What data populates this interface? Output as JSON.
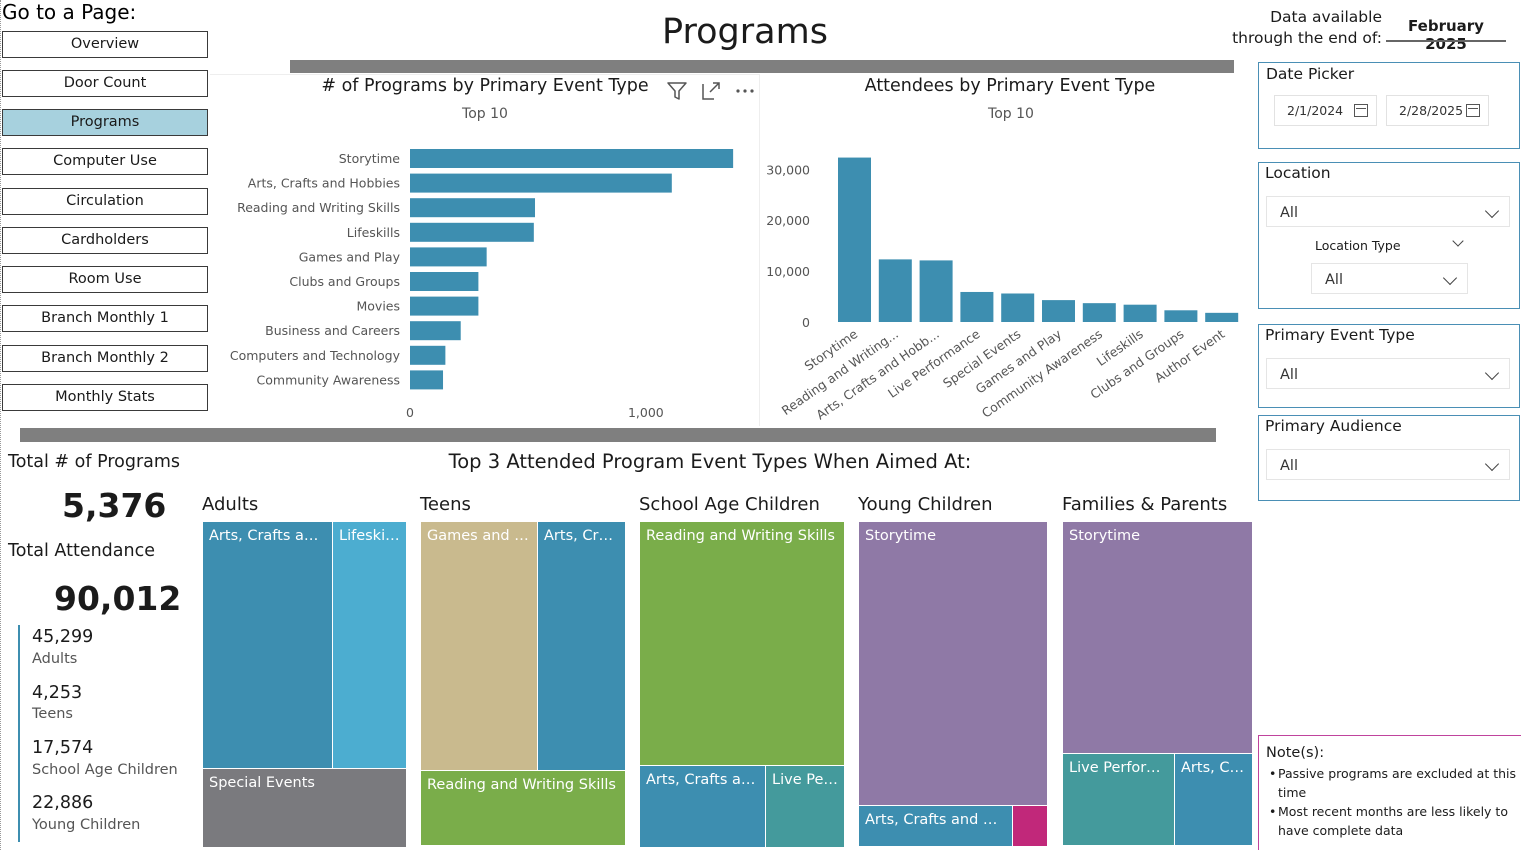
{
  "nav": {
    "title": "Go to a Page:",
    "items": [
      {
        "label": "Overview",
        "active": false
      },
      {
        "label": "Door Count",
        "active": false
      },
      {
        "label": "Programs",
        "active": true
      },
      {
        "label": "Computer Use",
        "active": false
      },
      {
        "label": "Circulation",
        "active": false
      },
      {
        "label": "Cardholders",
        "active": false
      },
      {
        "label": "Room Use",
        "active": false
      },
      {
        "label": "Branch Monthly 1",
        "active": false
      },
      {
        "label": "Branch Monthly 2",
        "active": false
      },
      {
        "label": "Monthly Stats",
        "active": false
      }
    ]
  },
  "header": {
    "page_title": "Programs",
    "availability_label_line1": "Data available",
    "availability_label_line2": "through the end of:",
    "availability_value": "February 2025"
  },
  "chart_data": [
    {
      "type": "bar",
      "orientation": "horizontal",
      "title": "# of Programs by Primary Event Type",
      "subtitle": "Top 10",
      "categories": [
        "Storytime",
        "Arts, Crafts and Hobbies",
        "Reading and Writing Skills",
        "Lifeskills",
        "Games and Play",
        "Clubs and Groups",
        "Movies",
        "Business and Careers",
        "Computers and Technology",
        "Community Awareness"
      ],
      "values": [
        1370,
        1110,
        530,
        525,
        325,
        290,
        290,
        215,
        150,
        140
      ],
      "xlim": [
        0,
        1450
      ],
      "xticks": [
        0,
        1000
      ],
      "xtick_labels": [
        "0",
        "1,000"
      ],
      "color": "#3d8eb0"
    },
    {
      "type": "bar",
      "orientation": "vertical",
      "title": "Attendees by Primary Event Type",
      "subtitle": "Top 10",
      "categories": [
        "Storytime",
        "Reading and Writing...",
        "Arts, Crafts and Hobb...",
        "Live Performance",
        "Special Events",
        "Games and Play",
        "Community Awareness",
        "Lifeskills",
        "Clubs and Groups",
        "Author Event"
      ],
      "values": [
        32300,
        12300,
        12100,
        5900,
        5600,
        4300,
        3700,
        3400,
        2300,
        1800
      ],
      "ylim": [
        0,
        33000
      ],
      "yticks": [
        0,
        10000,
        20000,
        30000
      ],
      "ytick_labels": [
        "0",
        "10,000",
        "20,000",
        "30,000"
      ],
      "color": "#3d8eb0"
    }
  ],
  "kpis": {
    "programs_label": "Total # of Programs",
    "programs_value": "5,376",
    "attendance_label": "Total Attendance",
    "attendance_value": "90,012",
    "audiences": [
      {
        "value": "45,299",
        "label": "Adults"
      },
      {
        "value": "4,253",
        "label": "Teens"
      },
      {
        "value": "17,574",
        "label": "School Age Children"
      },
      {
        "value": "22,886",
        "label": "Young Children"
      }
    ]
  },
  "treemaps": {
    "title": "Top 3 Attended Program Event Types When Aimed At:",
    "groups": [
      {
        "name": "Adults",
        "tiles": [
          "Arts, Crafts and...",
          "Lifeskills",
          "Special Events"
        ]
      },
      {
        "name": "Teens",
        "tiles": [
          "Games and P...",
          "Arts, Craf...",
          "Reading and Writing Skills"
        ]
      },
      {
        "name": "School Age Children",
        "tiles": [
          "Reading and Writing Skills",
          "Arts, Crafts an...",
          "Live Per..."
        ]
      },
      {
        "name": "Young Children",
        "tiles": [
          "Storytime",
          "Arts, Crafts and Ho...",
          ""
        ]
      },
      {
        "name": "Families & Parents",
        "tiles": [
          "Storytime",
          "Live Perform...",
          "Arts, Cr..."
        ]
      }
    ],
    "colors": {
      "blue": "#3d8eb0",
      "light_blue": "#4cadd0",
      "gray": "#7a7a7e",
      "tan": "#c9ba8e",
      "green": "#7aad4a",
      "teal": "#449a9c",
      "purple": "#8f79a6",
      "magenta": "#c1287a"
    }
  },
  "slicers": {
    "date_picker": {
      "title": "Date Picker",
      "start": "2/1/2024",
      "end": "2/28/2025"
    },
    "location": {
      "title": "Location",
      "value": "All",
      "sub_title": "Location Type",
      "sub_value": "All"
    },
    "event_type": {
      "title": "Primary Event Type",
      "value": "All"
    },
    "audience": {
      "title": "Primary Audience",
      "value": "All"
    }
  },
  "notes": {
    "title": "Note(s):",
    "items": [
      "Passive programs are excluded at this time",
      "Most recent months are less likely to have complete data"
    ]
  },
  "visual_header_icons": [
    "filter-icon",
    "focus-mode-icon",
    "more-options-icon"
  ]
}
